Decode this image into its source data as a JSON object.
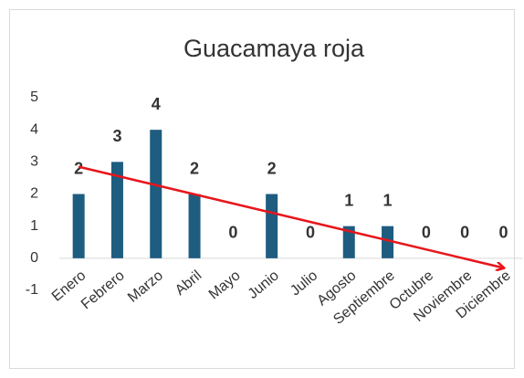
{
  "chart_data": {
    "type": "bar",
    "title": "Guacamaya roja",
    "categories": [
      "Enero",
      "Febrero",
      "Marzo",
      "Abril",
      "Mayo",
      "Junio",
      "Julio",
      "Agosto",
      "Septiembre",
      "Octubre",
      "Noviembre",
      "Diciembre"
    ],
    "values": [
      2,
      3,
      4,
      2,
      0,
      2,
      0,
      1,
      1,
      0,
      0,
      0
    ],
    "color": "#1e5c80",
    "ylim": [
      -1,
      5
    ],
    "yticks": [
      -1,
      0,
      1,
      2,
      3,
      4,
      5
    ],
    "grid": false,
    "trendline": {
      "color": "#e8151b",
      "start": 2.85,
      "end": -0.3
    }
  }
}
